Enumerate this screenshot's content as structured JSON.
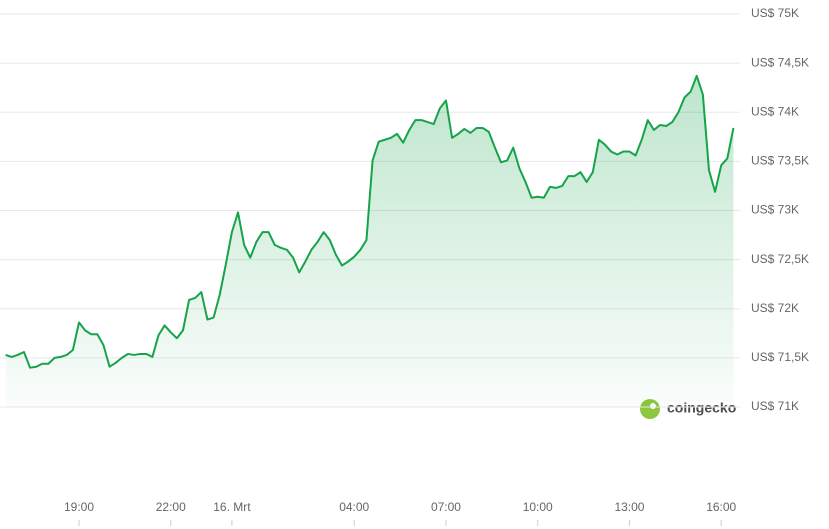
{
  "chart_data": {
    "type": "area",
    "watermark": "coingecko",
    "xlim": [
      16.6,
      40.5
    ],
    "xticks": [
      {
        "value": 19,
        "label": "19:00"
      },
      {
        "value": 22,
        "label": "22:00"
      },
      {
        "value": 24,
        "label": "16. Mrt"
      },
      {
        "value": 28,
        "label": "04:00"
      },
      {
        "value": 31,
        "label": "07:00"
      },
      {
        "value": 34,
        "label": "10:00"
      },
      {
        "value": 37,
        "label": "13:00"
      },
      {
        "value": 40,
        "label": "16:00"
      }
    ],
    "ylim": [
      71000,
      75000
    ],
    "yticks": [
      {
        "value": 71000,
        "label": "US$ 71K"
      },
      {
        "value": 71500,
        "label": "US$ 71,5K"
      },
      {
        "value": 72000,
        "label": "US$ 72K"
      },
      {
        "value": 72500,
        "label": "US$ 72,5K"
      },
      {
        "value": 73000,
        "label": "US$ 73K"
      },
      {
        "value": 73500,
        "label": "US$ 73,5K"
      },
      {
        "value": 74000,
        "label": "US$ 74K"
      },
      {
        "value": 74500,
        "label": "US$ 74,5K"
      },
      {
        "value": 75000,
        "label": "US$ 75K"
      }
    ],
    "grid": true,
    "color": "#16a34a",
    "x": [
      16.6,
      16.8,
      17.0,
      17.2,
      17.4,
      17.6,
      17.8,
      18.0,
      18.2,
      18.4,
      18.6,
      18.8,
      19.0,
      19.2,
      19.4,
      19.6,
      19.8,
      20.0,
      20.2,
      20.4,
      20.6,
      20.8,
      21.0,
      21.2,
      21.4,
      21.6,
      21.8,
      22.0,
      22.2,
      22.4,
      22.6,
      22.8,
      23.0,
      23.2,
      23.4,
      23.6,
      23.8,
      24.0,
      24.2,
      24.4,
      24.6,
      24.8,
      25.0,
      25.2,
      25.4,
      25.6,
      25.8,
      26.0,
      26.2,
      26.4,
      26.6,
      26.8,
      27.0,
      27.2,
      27.4,
      27.6,
      27.8,
      28.0,
      28.2,
      28.4,
      28.6,
      28.8,
      29.0,
      29.2,
      29.4,
      29.6,
      29.8,
      30.0,
      30.2,
      30.4,
      30.6,
      30.8,
      31.0,
      31.2,
      31.4,
      31.6,
      31.8,
      32.0,
      32.2,
      32.4,
      32.6,
      32.8,
      33.0,
      33.2,
      33.4,
      33.6,
      33.8,
      34.0,
      34.2,
      34.4,
      34.6,
      34.8,
      35.0,
      35.2,
      35.4,
      35.6,
      35.8,
      36.0,
      36.2,
      36.4,
      36.6,
      36.8,
      37.0,
      37.2,
      37.4,
      37.6,
      37.8,
      38.0,
      38.2,
      38.4,
      38.6,
      38.8,
      39.0,
      39.2,
      39.4,
      39.6,
      39.8,
      40.0,
      40.2,
      40.4
    ],
    "values": [
      71530,
      71510,
      71530,
      71560,
      71400,
      71410,
      71440,
      71440,
      71500,
      71510,
      71530,
      71580,
      71860,
      71780,
      71740,
      71740,
      71630,
      71410,
      71450,
      71500,
      71540,
      71530,
      71540,
      71540,
      71510,
      71730,
      71830,
      71760,
      71700,
      71780,
      72090,
      72110,
      72170,
      71890,
      71910,
      72140,
      72450,
      72780,
      72980,
      72650,
      72520,
      72680,
      72780,
      72780,
      72650,
      72620,
      72600,
      72520,
      72370,
      72480,
      72600,
      72680,
      72780,
      72700,
      72550,
      72440,
      72480,
      72530,
      72600,
      72700,
      73510,
      73700,
      73720,
      73740,
      73780,
      73690,
      73820,
      73920,
      73920,
      73900,
      73880,
      74040,
      74120,
      73740,
      73780,
      73830,
      73790,
      73840,
      73840,
      73800,
      73640,
      73490,
      73510,
      73640,
      73430,
      73290,
      73130,
      73140,
      73130,
      73240,
      73230,
      73250,
      73350,
      73350,
      73390,
      73290,
      73390,
      73720,
      73670,
      73600,
      73570,
      73600,
      73600,
      73560,
      73720,
      73920,
      73820,
      73870,
      73860,
      73900,
      74000,
      74150,
      74210,
      74370,
      74180,
      73410,
      73190,
      73460,
      73530,
      73840
    ]
  }
}
